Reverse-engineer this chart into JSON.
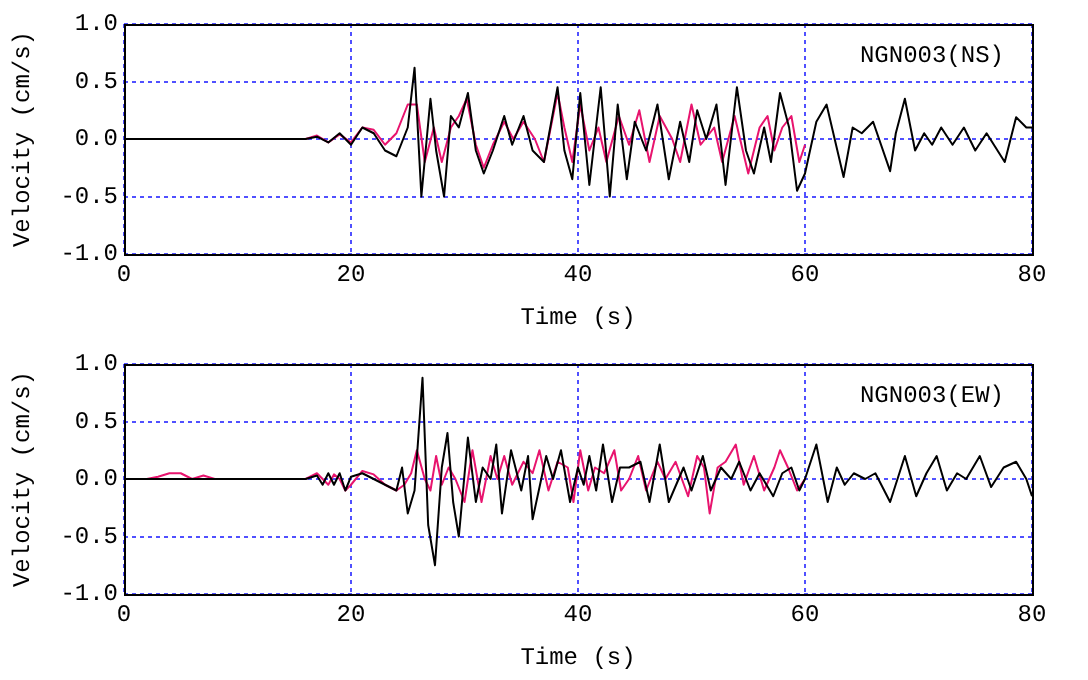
{
  "chart_data": [
    {
      "type": "line",
      "xlabel": "Time (s)",
      "ylabel": "Velocity (cm/s)",
      "annotations": [
        "NGN003(NS)"
      ],
      "xlim": [
        0,
        80
      ],
      "ylim": [
        -1,
        1
      ],
      "xticks": [
        0,
        20,
        40,
        60,
        80
      ],
      "yticks": [
        {
          "value": -1,
          "label": "-1.0"
        },
        {
          "value": -0.5,
          "label": "-0.5"
        },
        {
          "value": 0,
          "label": "0.0"
        },
        {
          "value": 0.5,
          "label": "0.5"
        },
        {
          "value": 1,
          "label": "1.0"
        }
      ],
      "grid": true,
      "marker": "none",
      "line_style": "solid",
      "series": [
        {
          "color": "#000000",
          "x": [
            0,
            16,
            17,
            18,
            19,
            20,
            21,
            22,
            23,
            24,
            25,
            25.6,
            26.2,
            27,
            27.5,
            28.2,
            28.8,
            29.5,
            30.3,
            31,
            31.7,
            32.5,
            33.5,
            34.2,
            35.2,
            36,
            37,
            38.2,
            38.8,
            39.5,
            40.2,
            41,
            42,
            42.8,
            43.5,
            44.3,
            45,
            46,
            47,
            48,
            49,
            49.8,
            50.5,
            51.3,
            52.2,
            53,
            54,
            54.8,
            55.5,
            56.4,
            57,
            57.8,
            58.6,
            59.3,
            60,
            61,
            61.9,
            63.4,
            64.2,
            65,
            66,
            67.5,
            68,
            68.8,
            69.7,
            70.5,
            71.2,
            72,
            73,
            74,
            75,
            76,
            77.6,
            78.6,
            79.5,
            80
          ],
          "values": [
            0,
            0,
            0.02,
            -0.03,
            0.05,
            -0.05,
            0.1,
            0.05,
            -0.1,
            -0.15,
            0.1,
            0.62,
            -0.5,
            0.35,
            -0.1,
            -0.5,
            0.2,
            0.1,
            0.4,
            -0.1,
            -0.3,
            -0.1,
            0.2,
            -0.05,
            0.2,
            -0.1,
            -0.2,
            0.45,
            -0.1,
            -0.35,
            0.4,
            -0.4,
            0.45,
            -0.5,
            0.3,
            -0.35,
            0.15,
            -0.1,
            0.3,
            -0.35,
            0.15,
            -0.2,
            0.25,
            0,
            0.3,
            -0.4,
            0.45,
            -0.1,
            -0.3,
            0.1,
            -0.2,
            0.4,
            0.1,
            -0.45,
            -0.3,
            0.15,
            0.3,
            -0.33,
            0.1,
            0.05,
            0.15,
            -0.28,
            0.05,
            0.35,
            -0.1,
            0.05,
            -0.05,
            0.1,
            -0.05,
            0.1,
            -0.1,
            0.05,
            -0.2,
            0.19,
            0.1,
            0.1
          ]
        },
        {
          "color": "#e8146e",
          "x": [
            0,
            16,
            17,
            18,
            19,
            20,
            21,
            22,
            23,
            24,
            25,
            25.8,
            26.5,
            27.3,
            28,
            28.8,
            29.5,
            30.2,
            31,
            31.7,
            32.5,
            33.5,
            34.3,
            35.2,
            36.2,
            37,
            38.2,
            38.8,
            39.5,
            40.2,
            41,
            41.8,
            42.5,
            43.6,
            44.5,
            45.4,
            46.3,
            47.2,
            48.3,
            49,
            50,
            50.8,
            52,
            52.7,
            53.8,
            55,
            56,
            56.7,
            57.3,
            58,
            58.8,
            59.5,
            60
          ],
          "values": [
            0,
            0,
            0.03,
            -0.03,
            0.04,
            -0.03,
            0.1,
            0.08,
            -0.05,
            0.05,
            0.3,
            0.3,
            -0.2,
            0.1,
            -0.2,
            0.1,
            0.2,
            0.35,
            -0.05,
            -0.25,
            -0.05,
            0.15,
            0,
            0.15,
            0,
            -0.2,
            0.4,
            0.1,
            -0.2,
            0.3,
            -0.1,
            0.1,
            -0.2,
            0.2,
            -0.05,
            0.25,
            -0.2,
            0.2,
            0,
            -0.2,
            0.3,
            -0.05,
            0.1,
            -0.2,
            0.2,
            -0.3,
            0.1,
            0.2,
            -0.1,
            0.1,
            0.2,
            -0.2,
            -0.05
          ]
        }
      ]
    },
    {
      "type": "line",
      "xlabel": "Time (s)",
      "ylabel": "Velocity (cm/s)",
      "annotations": [
        "NGN003(EW)"
      ],
      "xlim": [
        0,
        80
      ],
      "ylim": [
        -1,
        1
      ],
      "xticks": [
        0,
        20,
        40,
        60,
        80
      ],
      "yticks": [
        {
          "value": -1,
          "label": "-1.0"
        },
        {
          "value": -0.5,
          "label": "-0.5"
        },
        {
          "value": 0,
          "label": "0.0"
        },
        {
          "value": 0.5,
          "label": "0.5"
        },
        {
          "value": 1,
          "label": "1.0"
        }
      ],
      "grid": true,
      "marker": "none",
      "line_style": "solid",
      "series": [
        {
          "color": "#000000",
          "x": [
            0,
            16,
            17,
            17.5,
            18,
            18.5,
            19,
            19.5,
            20,
            21,
            22,
            23,
            24,
            24.5,
            25,
            25.6,
            26.3,
            26.8,
            27.4,
            28,
            28.5,
            29,
            29.5,
            30.3,
            31,
            31.6,
            32.3,
            32.8,
            33.3,
            34.1,
            35,
            35.6,
            36,
            37.2,
            37.8,
            38.5,
            39.3,
            40,
            40.5,
            41,
            41.6,
            42.2,
            43,
            43.7,
            44.5,
            45.5,
            46.3,
            47.2,
            48,
            49.3,
            50,
            51,
            51.7,
            52.6,
            53.5,
            54.2,
            55.2,
            56,
            57.2,
            58,
            58.8,
            59.5,
            60,
            61,
            62,
            62.8,
            63.5,
            64.3,
            65.3,
            66.2,
            67.5,
            68.8,
            69.8,
            70.7,
            71.6,
            72.5,
            73.4,
            74.2,
            75.4,
            76.4,
            77.5,
            78.6,
            79.5,
            80
          ],
          "values": [
            0,
            0,
            0.03,
            -0.05,
            0.05,
            -0.05,
            0.05,
            -0.1,
            0.02,
            0.05,
            0,
            -0.05,
            -0.1,
            0.1,
            -0.3,
            -0.1,
            0.88,
            -0.4,
            -0.75,
            0.1,
            0.4,
            -0.2,
            -0.5,
            0.36,
            -0.2,
            0.1,
            0,
            0.3,
            -0.3,
            0.25,
            -0.1,
            0.2,
            -0.35,
            0.2,
            0,
            0.25,
            -0.2,
            0.1,
            -0.05,
            0.2,
            -0.1,
            0.3,
            -0.2,
            0.1,
            0.1,
            0.15,
            -0.2,
            0.3,
            -0.2,
            0.1,
            -0.1,
            0.2,
            -0.1,
            0.1,
            0,
            0.15,
            -0.1,
            0.05,
            -0.15,
            0.05,
            0.1,
            -0.1,
            0,
            0.3,
            -0.2,
            0.1,
            -0.05,
            0.05,
            0,
            0.05,
            -0.2,
            0.2,
            -0.15,
            0.05,
            0.2,
            -0.1,
            0.05,
            0,
            0.2,
            -0.07,
            0.1,
            0.15,
            0,
            -0.15
          ]
        },
        {
          "color": "#e8146e",
          "x": [
            0,
            2,
            3,
            4,
            5,
            6,
            7,
            8,
            16,
            17,
            18,
            18.5,
            19,
            19.5,
            20,
            21,
            22,
            23,
            24,
            24.7,
            25.3,
            25.8,
            26.5,
            27,
            27.5,
            28,
            28.6,
            29.2,
            30,
            30.7,
            31.5,
            32.3,
            32.9,
            33.5,
            34.2,
            35.2,
            36,
            36.6,
            37.4,
            38.2,
            39.1,
            39.6,
            40.2,
            40.9,
            41.5,
            42.3,
            43.2,
            43.8,
            44.5,
            45.3,
            46,
            47,
            47.7,
            48.6,
            49.7,
            50.5,
            51.1,
            51.6,
            52.3,
            53,
            53.9,
            54.6,
            55.5,
            56.4,
            57.3,
            57.8,
            58.5,
            59.3,
            60
          ],
          "values": [
            0,
            0,
            0.02,
            0.05,
            0.05,
            0,
            0.03,
            0,
            0,
            0.05,
            -0.05,
            0.04,
            0,
            -0.1,
            -0.05,
            0.07,
            0.04,
            -0.05,
            -0.1,
            -0.05,
            0.05,
            0.25,
            0,
            -0.1,
            0.2,
            -0.05,
            0.1,
            0,
            -0.2,
            0.25,
            -0.2,
            0.2,
            0,
            0.2,
            -0.05,
            0.15,
            0.05,
            0.25,
            -0.1,
            0.15,
            0.1,
            -0.2,
            0.25,
            -0.1,
            0.1,
            0.05,
            0.25,
            -0.1,
            0,
            0.2,
            -0.1,
            0.15,
            0,
            0.15,
            -0.15,
            0.2,
            0.1,
            -0.3,
            0.1,
            0.15,
            0.3,
            -0.05,
            0.2,
            -0.1,
            0.1,
            0.25,
            0.1,
            -0.1,
            0
          ]
        }
      ]
    }
  ]
}
